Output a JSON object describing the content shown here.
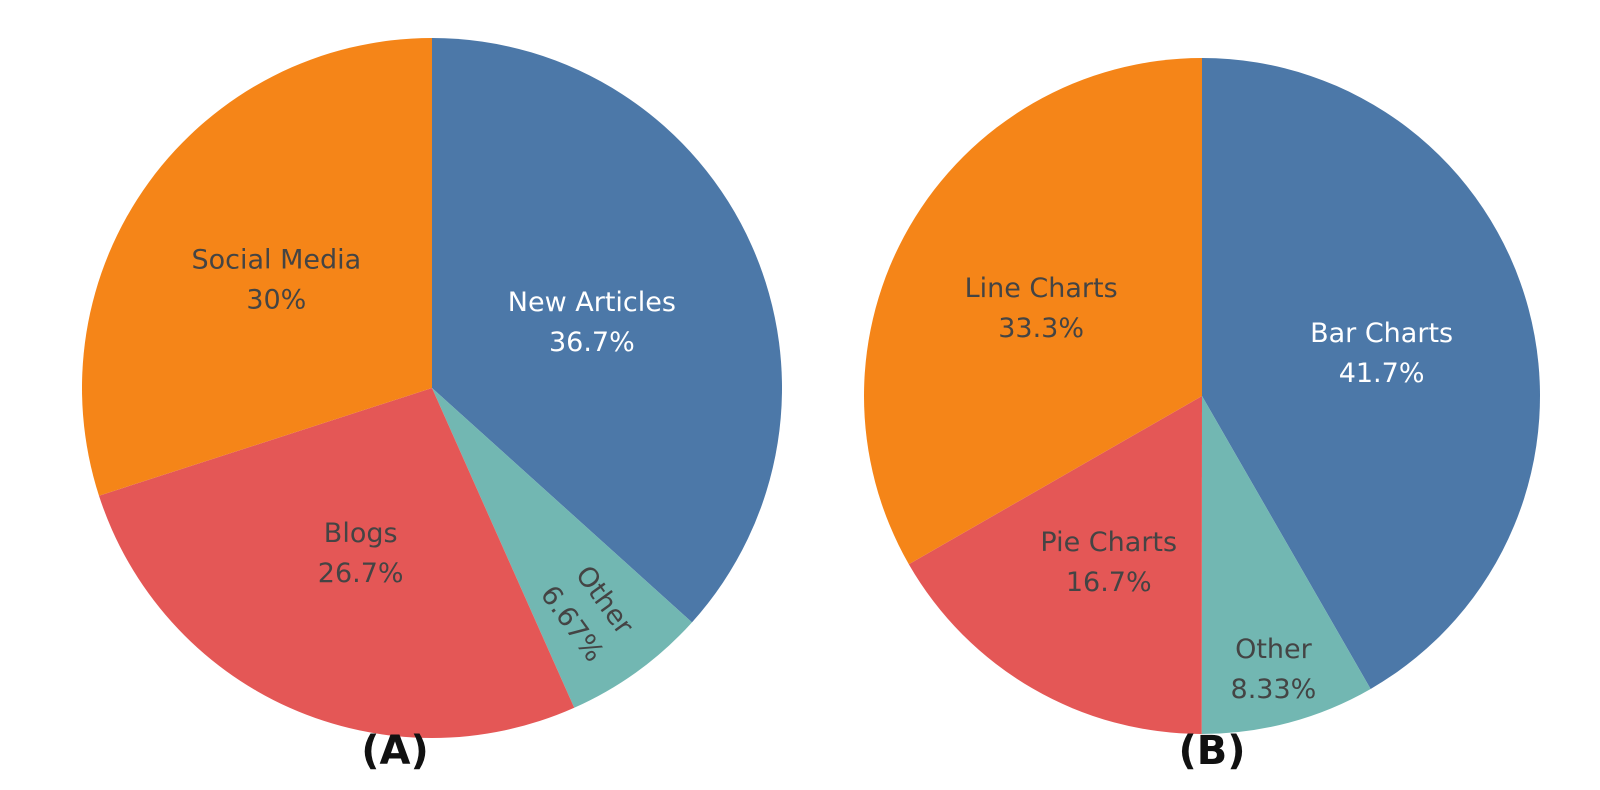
{
  "chart_data": [
    {
      "type": "pie",
      "panel_label": "(A)",
      "start": "12 o'clock",
      "direction": "clockwise",
      "slices": [
        {
          "label": "New Articles",
          "percent_text": "36.7%",
          "value": 36.7,
          "color": "#4c78a8",
          "text_color": "#ffffff"
        },
        {
          "label": "Other",
          "percent_text": "6.67%",
          "value": 6.67,
          "color": "#72b7b2",
          "text_color": "#444444"
        },
        {
          "label": "Blogs",
          "percent_text": "26.7%",
          "value": 26.7,
          "color": "#e45756",
          "text_color": "#444444"
        },
        {
          "label": "Social Media",
          "percent_text": "30%",
          "value": 30,
          "color": "#f58518",
          "text_color": "#444444"
        }
      ]
    },
    {
      "type": "pie",
      "panel_label": "(B)",
      "start": "12 o'clock",
      "direction": "clockwise",
      "slices": [
        {
          "label": "Bar Charts",
          "percent_text": "41.7%",
          "value": 41.7,
          "color": "#4c78a8",
          "text_color": "#ffffff"
        },
        {
          "label": "Other",
          "percent_text": "8.33%",
          "value": 8.33,
          "color": "#72b7b2",
          "text_color": "#444444"
        },
        {
          "label": "Pie Charts",
          "percent_text": "16.7%",
          "value": 16.7,
          "color": "#e45756",
          "text_color": "#444444"
        },
        {
          "label": "Line Charts",
          "percent_text": "33.3%",
          "value": 33.3,
          "color": "#f58518",
          "text_color": "#444444"
        }
      ]
    }
  ]
}
